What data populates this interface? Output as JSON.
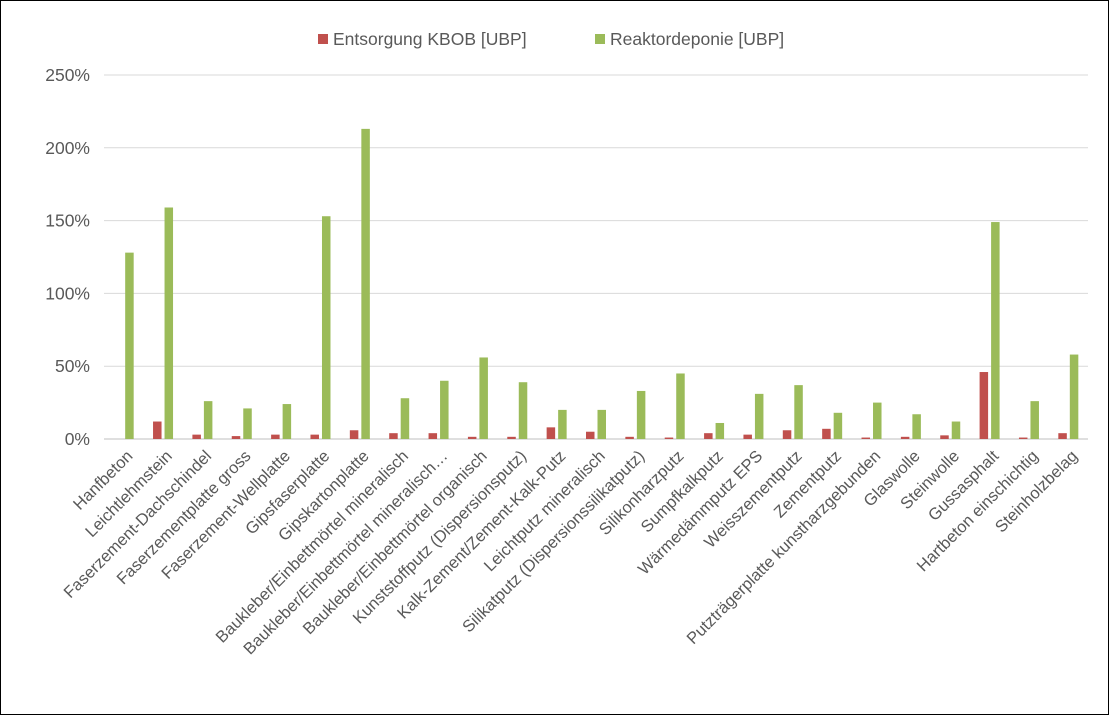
{
  "chart_data": {
    "type": "bar",
    "title": "",
    "xlabel": "",
    "ylabel": "",
    "ylim": [
      0,
      2.5
    ],
    "y_ticks": [
      0,
      0.5,
      1.0,
      1.5,
      2.0,
      2.5
    ],
    "y_tick_labels": [
      "0%",
      "50%",
      "100%",
      "150%",
      "200%",
      "250%"
    ],
    "grid": true,
    "legend_position": "top",
    "categories": [
      "Hanfbeton",
      "Leichtlehmstein",
      "Faserzement-Dachschindel",
      "Faserzementplatte gross",
      "Faserzement-Wellplatte",
      "Gipsfaserplatte",
      "Gipskartonplatte",
      "Baukleber/Einbettmörtel mineralisch",
      "Baukleber/Einbettmörtel mineralisch…",
      "Baukleber/Einbettmörtel organisch",
      "Kunststoffputz (Dispersionsputz)",
      "Kalk-Zement/Zement-Kalk-Putz",
      "Leichtputz mineralisch",
      "Silikatputz (Dispersionssilikatputz)",
      "Silikonharzputz",
      "Sumpfkalkputz",
      "Wärmedämmputz EPS",
      "Weisszementputz",
      "Zementputz",
      "Putzträgerplatte kunstharzgebunden",
      "Glaswolle",
      "Steinwolle",
      "Gussasphalt",
      "Hartbeton einschichtig",
      "Steinholzbelag"
    ],
    "series": [
      {
        "name": "Entsorgung KBOB [UBP]",
        "color": "#c0504d",
        "values": [
          0.0,
          0.12,
          0.03,
          0.02,
          0.03,
          0.03,
          0.06,
          0.04,
          0.04,
          0.015,
          0.015,
          0.08,
          0.05,
          0.015,
          0.01,
          0.04,
          0.03,
          0.06,
          0.07,
          0.01,
          0.015,
          0.025,
          0.46,
          0.01,
          0.04
        ]
      },
      {
        "name": "Reaktordeponie [UBP]",
        "color": "#9bbb59",
        "values": [
          1.28,
          1.59,
          0.26,
          0.21,
          0.24,
          1.53,
          2.13,
          0.28,
          0.4,
          0.56,
          0.39,
          0.2,
          0.2,
          0.33,
          0.45,
          0.11,
          0.31,
          0.37,
          0.18,
          0.25,
          0.17,
          0.12,
          1.49,
          0.26,
          0.58
        ]
      }
    ]
  }
}
